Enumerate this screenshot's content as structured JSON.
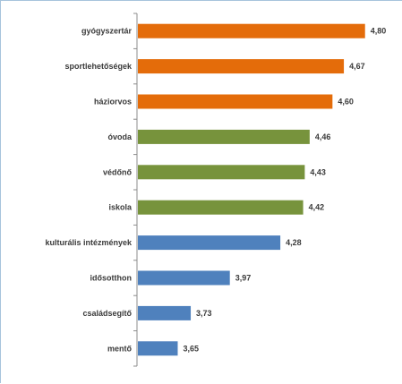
{
  "chart_data": {
    "type": "bar",
    "orientation": "horizontal",
    "categories": [
      "gyógyszertár",
      "sportlehetőségek",
      "háziorvos",
      "óvoda",
      "védőnő",
      "iskola",
      "kulturális intézmények",
      "idősotthon",
      "családsegítő",
      "mentő"
    ],
    "values": [
      4.8,
      4.67,
      4.6,
      4.46,
      4.43,
      4.42,
      4.28,
      3.97,
      3.73,
      3.65
    ],
    "value_labels": [
      "4,80",
      "4,67",
      "4,60",
      "4,46",
      "4,43",
      "4,42",
      "4,28",
      "3,97",
      "3,73",
      "3,65"
    ],
    "bar_colors": [
      "#e46c0a",
      "#e46c0a",
      "#e46c0a",
      "#77933c",
      "#77933c",
      "#77933c",
      "#4f81bd",
      "#4f81bd",
      "#4f81bd",
      "#4f81bd"
    ],
    "xlim": [
      3.4,
      4.84
    ],
    "grid": false,
    "legend": "none",
    "title": "",
    "xlabel": "",
    "ylabel": ""
  }
}
